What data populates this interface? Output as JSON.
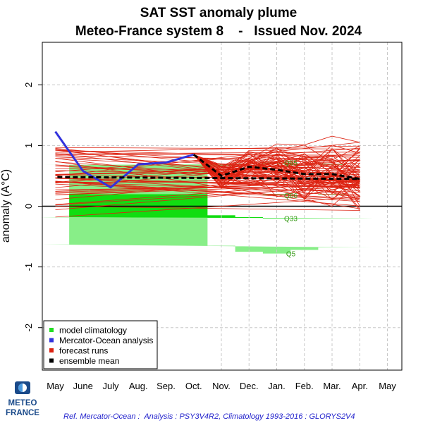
{
  "chart_data": {
    "type": "line",
    "title": "SAT SST anomaly plume",
    "subtitle": "Meteo-France system 8    -   Issued Nov. 2024",
    "ylabel": "anomaly (A°C)",
    "categories": [
      "May",
      "June",
      "July",
      "Aug.",
      "Sep.",
      "Oct.",
      "Nov.",
      "Dec.",
      "Jan.",
      "Feb.",
      "Mar.",
      "Apr.",
      "May"
    ],
    "ylim": [
      -2.7,
      2.7
    ],
    "yticks": [
      "-2",
      "-1",
      "0",
      "1",
      "2"
    ],
    "grid": true,
    "analysis": {
      "name": "Mercator-Ocean analysis",
      "color": "#3333dd",
      "x": [
        "May",
        "June",
        "July",
        "Aug.",
        "Sep.",
        "Oct."
      ],
      "y": [
        1.23,
        0.58,
        0.31,
        0.69,
        0.72,
        0.85
      ]
    },
    "ensemble_mean": {
      "name": "ensemble mean",
      "color": "#000000",
      "x": [
        "Oct.",
        "Nov.",
        "Dec.",
        "Jan.",
        "Feb.",
        "Mar.",
        "Apr.",
        "May"
      ],
      "y": [
        0.85,
        0.5,
        0.65,
        0.6,
        0.53,
        0.53,
        0.45,
        0.48
      ]
    },
    "forecast_runs": {
      "name": "forecast runs",
      "color": "#dd2211",
      "count": 51
    },
    "climatology": {
      "name": "model climatology",
      "x": [
        "Nov.",
        "Dec.",
        "Jan.",
        "Feb.",
        "Mar.",
        "Apr.",
        "May"
      ],
      "Q5": [
        -0.65,
        -0.75,
        -0.78,
        -0.72,
        -0.68,
        -0.68,
        -0.63
      ],
      "Q33": [
        -0.15,
        -0.18,
        -0.2,
        -0.2,
        -0.2,
        -0.2,
        -0.18
      ],
      "Q66": [
        0.2,
        0.2,
        0.18,
        0.2,
        0.19,
        0.2,
        0.2
      ],
      "Q95": [
        0.66,
        0.7,
        0.72,
        0.7,
        0.68,
        0.7,
        0.68
      ],
      "labels": [
        "Q95",
        "Q66",
        "Q33",
        "Q5"
      ]
    },
    "legend": {
      "position": "bottom-left",
      "entries": [
        {
          "label": "model climatology",
          "color": "#22dd22"
        },
        {
          "label": "Mercator-Ocean analysis",
          "color": "#3333dd"
        },
        {
          "label": "forecast runs",
          "color": "#dd2211"
        },
        {
          "label": "ensemble mean",
          "color": "#000000"
        }
      ]
    }
  },
  "footer": {
    "reference": "Ref. Mercator-Ocean :  Analysis : PSY3V4R2, Climatology 1993-2016 : GLORYS2V4",
    "logo_line1": "METEO",
    "logo_line2": "FRANCE"
  }
}
